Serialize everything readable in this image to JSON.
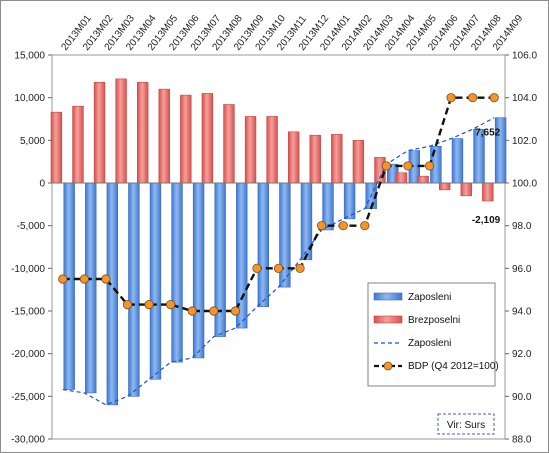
{
  "chart_data": {
    "type": "bar",
    "categories": [
      "2013M01",
      "2013M02",
      "2013M03",
      "2013M04",
      "2013M05",
      "2013M06",
      "2013M07",
      "2013M08",
      "2013M09",
      "2013M10",
      "2013M11",
      "2013M12",
      "2014M01",
      "2014M02",
      "2014M03",
      "2014M04",
      "2014M05",
      "2014M06",
      "2014M07",
      "2014M08",
      "2014M09"
    ],
    "y_left": {
      "ylim": [
        -30000,
        15000
      ],
      "ticks": [
        15000,
        10000,
        5000,
        0,
        -5000,
        -10000,
        -15000,
        -20000,
        -25000,
        -30000
      ],
      "tick_labels": [
        "15,000",
        "10,000",
        "5,000",
        "0",
        "-5,000",
        "-10,000",
        "-15,000",
        "-20,000",
        "-25,000",
        "-30,000"
      ]
    },
    "y_right": {
      "ylim": [
        88.0,
        106.0
      ],
      "ticks": [
        106.0,
        104.0,
        102.0,
        100.0,
        98.0,
        96.0,
        94.0,
        92.0,
        90.0,
        88.0
      ],
      "tick_labels": [
        "106.0",
        "104.0",
        "102.0",
        "100.0",
        "98.0",
        "96.0",
        "94.0",
        "92.0",
        "90.0",
        "88.0"
      ]
    },
    "series": [
      {
        "name": "Zaposleni",
        "kind": "bar",
        "axis": "left",
        "color": "#5b8fd6",
        "values": [
          -24200,
          -24600,
          -26000,
          -25000,
          -23000,
          -21000,
          -20500,
          -18000,
          -17000,
          -14500,
          -12200,
          -9000,
          -5500,
          -4200,
          -3000,
          2200,
          3800,
          4300,
          5200,
          6300,
          7652
        ]
      },
      {
        "name": "Brezposelni",
        "kind": "bar",
        "axis": "left",
        "color": "#e0605c",
        "values": [
          8300,
          9000,
          11800,
          12200,
          11800,
          11000,
          10300,
          10500,
          9200,
          7800,
          7800,
          6000,
          5600,
          5700,
          5000,
          3000,
          1200,
          800,
          -800,
          -1500,
          -2109
        ]
      },
      {
        "name": "Zaposleni",
        "kind": "line",
        "axis": "left",
        "color": "#1f4fd6",
        "values": [
          -24200,
          -24600,
          -26000,
          -25000,
          -23000,
          -21000,
          -20500,
          -18000,
          -17000,
          -14500,
          -12200,
          -9000,
          -5500,
          -4200,
          -3000,
          2200,
          3800,
          4300,
          5200,
          6300,
          7652
        ]
      },
      {
        "name": "BDP (Q4 2012=100)",
        "kind": "line",
        "axis": "right",
        "color": "#111111",
        "marker_color": "#f0962d",
        "values": [
          95.5,
          95.5,
          95.5,
          94.3,
          94.3,
          94.3,
          94.0,
          94.0,
          94.0,
          96.0,
          96.0,
          96.0,
          98.0,
          98.0,
          98.0,
          100.8,
          100.8,
          100.8,
          104.0,
          104.0,
          104.0
        ]
      }
    ],
    "annotations": [
      "7,652",
      "-2,109"
    ],
    "source": "Vir: Surs",
    "grid": false,
    "legend_placement": "right"
  }
}
